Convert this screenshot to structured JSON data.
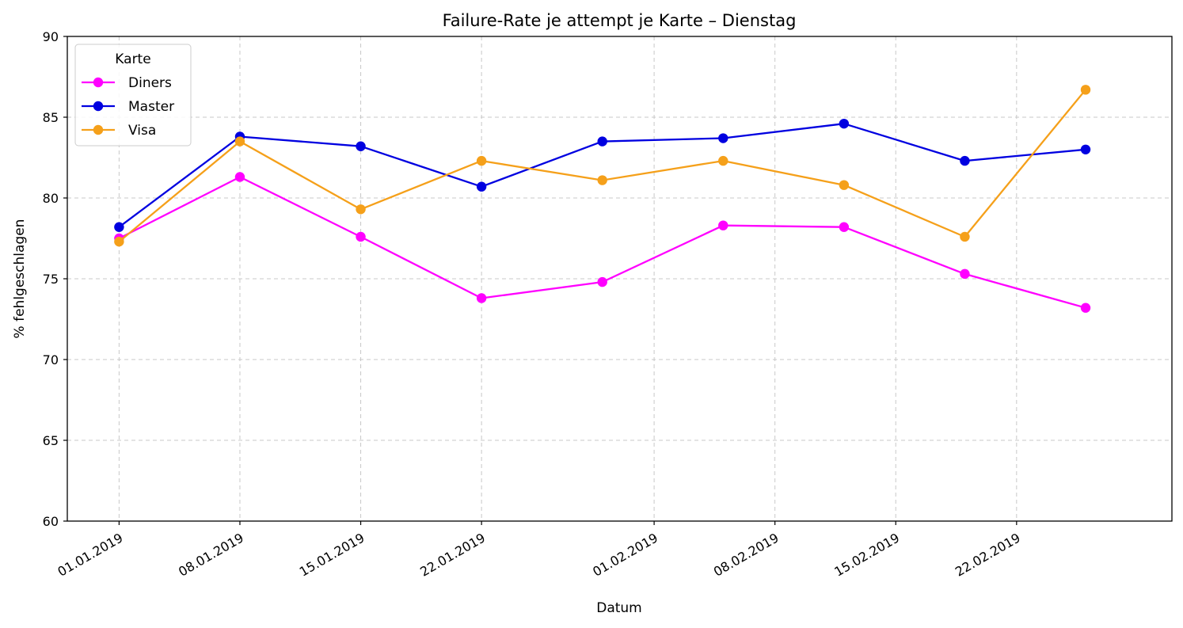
{
  "chart_data": {
    "type": "line",
    "title": "Failure-Rate je attempt je Karte – Dienstag",
    "xlabel": "Datum",
    "ylabel": "% fehlgeschlagen",
    "ylim": [
      60,
      90
    ],
    "yticks": [
      60,
      65,
      70,
      75,
      80,
      85,
      90
    ],
    "xlim": [
      "2018-12-29",
      "2019-03-03"
    ],
    "xticks": [
      "2019-01-01",
      "2019-01-08",
      "2019-01-15",
      "2019-01-22",
      "2019-02-01",
      "2019-02-08",
      "2019-02-15",
      "2019-02-22"
    ],
    "xtick_labels": [
      "01.01.2019",
      "08.01.2019",
      "15.01.2019",
      "22.01.2019",
      "01.02.2019",
      "08.02.2019",
      "15.02.2019",
      "22.02.2019"
    ],
    "x": [
      "2019-01-01",
      "2019-01-08",
      "2019-01-15",
      "2019-01-22",
      "2019-01-29",
      "2019-02-05",
      "2019-02-12",
      "2019-02-19",
      "2019-02-26"
    ],
    "grid": true,
    "legend": {
      "title": "Karte",
      "position": "top-left"
    },
    "series": [
      {
        "name": "Diners",
        "color": "#ff00ff",
        "values": [
          77.5,
          81.3,
          77.6,
          73.8,
          74.8,
          78.3,
          78.2,
          75.3,
          73.2
        ]
      },
      {
        "name": "Master",
        "color": "#0000e0",
        "values": [
          78.2,
          83.8,
          83.2,
          80.7,
          83.5,
          83.7,
          84.6,
          82.3,
          83.0
        ]
      },
      {
        "name": "Visa",
        "color": "#f5a01a",
        "values": [
          77.3,
          83.5,
          79.3,
          82.3,
          81.1,
          82.3,
          80.8,
          77.6,
          86.7
        ]
      }
    ]
  }
}
